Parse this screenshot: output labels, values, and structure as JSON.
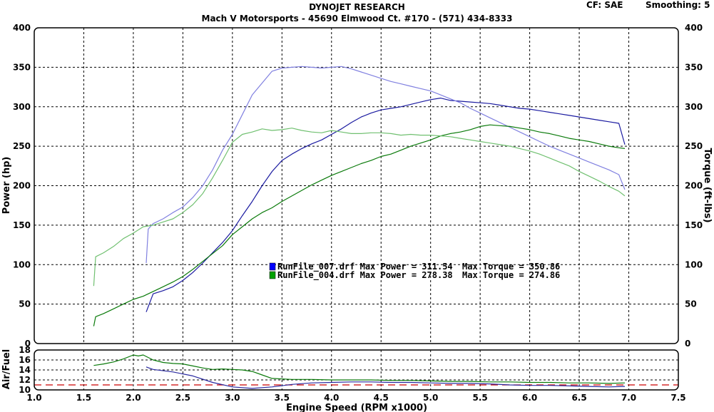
{
  "header": {
    "title": "DYNOJET RESEARCH",
    "subtitle": "Mach V Motorsports - 45690 Elmwood Ct. #170 - (571) 434-8333",
    "cf": "CF: SAE",
    "smoothing": "Smoothing: 5"
  },
  "chart_data": [
    {
      "type": "line",
      "title": "",
      "xlabel": "",
      "ylabel": "Power (hp)",
      "ylabel_right": "Torque (ft-lbs)",
      "xlim": [
        1.0,
        7.5
      ],
      "ylim": [
        0,
        400
      ],
      "x_ticks": [
        1.0,
        1.5,
        2.0,
        2.5,
        3.0,
        3.5,
        4.0,
        4.5,
        5.0,
        5.5,
        6.0,
        6.5,
        7.0,
        7.5
      ],
      "y_ticks": [
        0,
        50,
        100,
        150,
        200,
        250,
        300,
        350,
        400
      ],
      "y_ticks_right": [
        0,
        50,
        100,
        150,
        200,
        250,
        300,
        350,
        400
      ],
      "grid": true,
      "legend": [
        {
          "file": "RunFile_007.drf",
          "label": "RunFile_007.drf Max Power = 311.54",
          "torque_label": "Max Torque = 350.86",
          "color": "#0000ff"
        },
        {
          "file": "RunFile_004.drf",
          "label": "RunFile_004.drf Max Power = 278.38",
          "torque_label": "Max Torque = 274.86",
          "color": "#008000"
        }
      ],
      "series": [
        {
          "name": "RunFile_007.drf",
          "measure": "Power",
          "color": "#1a1aa0",
          "x": [
            2.13,
            2.2,
            2.3,
            2.4,
            2.5,
            2.6,
            2.7,
            2.8,
            2.9,
            3.0,
            3.1,
            3.2,
            3.3,
            3.4,
            3.5,
            3.6,
            3.7,
            3.8,
            3.9,
            4.0,
            4.1,
            4.2,
            4.3,
            4.4,
            4.5,
            4.6,
            4.7,
            4.8,
            4.9,
            5.0,
            5.1,
            5.2,
            5.3,
            5.4,
            5.5,
            5.6,
            5.7,
            5.8,
            5.9,
            6.0,
            6.1,
            6.2,
            6.3,
            6.4,
            6.5,
            6.6,
            6.7,
            6.8,
            6.9,
            6.96
          ],
          "y": [
            40,
            63,
            67,
            72,
            80,
            90,
            102,
            115,
            128,
            143,
            162,
            180,
            200,
            218,
            232,
            240,
            247,
            253,
            258,
            265,
            272,
            280,
            287,
            292,
            296,
            298,
            300,
            303,
            306,
            309,
            311,
            308,
            307,
            306,
            305,
            304,
            302,
            300,
            298,
            297,
            295,
            293,
            291,
            289,
            287,
            285,
            283,
            281,
            279,
            252
          ]
        },
        {
          "name": "RunFile_007.drf",
          "measure": "Torque",
          "color": "#8080e0",
          "x": [
            2.13,
            2.15,
            2.2,
            2.3,
            2.4,
            2.5,
            2.6,
            2.7,
            2.8,
            2.9,
            3.0,
            3.1,
            3.2,
            3.3,
            3.4,
            3.5,
            3.6,
            3.7,
            3.8,
            3.9,
            4.0,
            4.1,
            4.2,
            4.3,
            4.4,
            4.5,
            4.6,
            4.7,
            4.8,
            4.9,
            5.0,
            5.1,
            5.2,
            5.3,
            5.4,
            5.5,
            5.6,
            5.7,
            5.8,
            5.9,
            6.0,
            6.1,
            6.2,
            6.3,
            6.4,
            6.5,
            6.6,
            6.7,
            6.8,
            6.9,
            6.96
          ],
          "y": [
            102,
            145,
            152,
            158,
            166,
            173,
            185,
            200,
            220,
            245,
            265,
            290,
            315,
            330,
            345,
            349,
            350,
            351,
            350,
            349,
            350,
            351,
            348,
            344,
            340,
            336,
            332,
            329,
            326,
            323,
            320,
            315,
            310,
            305,
            298,
            292,
            286,
            280,
            274,
            268,
            262,
            256,
            250,
            245,
            240,
            235,
            230,
            225,
            220,
            214,
            195
          ]
        },
        {
          "name": "RunFile_004.drf",
          "measure": "Power",
          "color": "#0a7a0a",
          "x": [
            1.6,
            1.62,
            1.7,
            1.8,
            1.9,
            2.0,
            2.1,
            2.2,
            2.3,
            2.4,
            2.5,
            2.6,
            2.7,
            2.8,
            2.9,
            3.0,
            3.1,
            3.2,
            3.3,
            3.4,
            3.5,
            3.6,
            3.7,
            3.8,
            3.9,
            4.0,
            4.1,
            4.2,
            4.3,
            4.4,
            4.5,
            4.6,
            4.7,
            4.8,
            4.9,
            5.0,
            5.1,
            5.2,
            5.3,
            5.4,
            5.5,
            5.6,
            5.7,
            5.8,
            5.9,
            6.0,
            6.1,
            6.2,
            6.3,
            6.4,
            6.5,
            6.6,
            6.7,
            6.8,
            6.9,
            6.96
          ],
          "y": [
            22,
            34,
            38,
            44,
            50,
            56,
            60,
            66,
            72,
            78,
            85,
            94,
            104,
            114,
            124,
            138,
            148,
            158,
            166,
            172,
            180,
            187,
            194,
            201,
            207,
            213,
            218,
            223,
            228,
            232,
            237,
            240,
            245,
            250,
            254,
            258,
            263,
            266,
            268,
            271,
            275,
            277,
            276,
            275,
            273,
            271,
            268,
            266,
            263,
            260,
            258,
            256,
            253,
            250,
            248,
            247
          ]
        },
        {
          "name": "RunFile_004.drf",
          "measure": "Torque",
          "color": "#70c070",
          "x": [
            1.6,
            1.62,
            1.7,
            1.8,
            1.9,
            2.0,
            2.1,
            2.2,
            2.3,
            2.4,
            2.5,
            2.6,
            2.7,
            2.8,
            2.9,
            3.0,
            3.1,
            3.2,
            3.3,
            3.4,
            3.5,
            3.6,
            3.7,
            3.8,
            3.9,
            4.0,
            4.1,
            4.2,
            4.3,
            4.4,
            4.5,
            4.6,
            4.7,
            4.8,
            4.9,
            5.0,
            5.1,
            5.2,
            5.3,
            5.4,
            5.5,
            5.6,
            5.7,
            5.8,
            5.9,
            6.0,
            6.1,
            6.2,
            6.3,
            6.4,
            6.5,
            6.6,
            6.7,
            6.8,
            6.9,
            6.96
          ],
          "y": [
            73,
            110,
            115,
            123,
            133,
            140,
            148,
            150,
            154,
            158,
            166,
            176,
            190,
            210,
            232,
            255,
            265,
            268,
            272,
            270,
            271,
            273,
            270,
            268,
            267,
            270,
            268,
            266,
            266,
            267,
            267,
            266,
            264,
            265,
            264,
            264,
            263,
            262,
            260,
            258,
            256,
            254,
            252,
            250,
            247,
            244,
            240,
            235,
            230,
            225,
            218,
            212,
            206,
            199,
            193,
            187
          ]
        }
      ]
    },
    {
      "type": "line",
      "title": "",
      "xlabel": "Engine Speed (RPM x1000)",
      "ylabel": "Air/Fuel",
      "xlim": [
        1.0,
        7.5
      ],
      "ylim": [
        10,
        18
      ],
      "x_ticks": [
        1.0,
        1.5,
        2.0,
        2.5,
        3.0,
        3.5,
        4.0,
        4.5,
        5.0,
        5.5,
        6.0,
        6.5,
        7.0,
        7.5
      ],
      "x_tick_labels": [
        "1.0",
        "1.5",
        "2.0",
        "2.5",
        "3.0",
        "3.5",
        "4.0",
        "4.5",
        "5.0",
        "5.5",
        "6.0",
        "6.5",
        "7.0",
        "7.5"
      ],
      "y_ticks": [
        10,
        12,
        14,
        16,
        18
      ],
      "reference_line": {
        "y": 11.0,
        "color": "#cc0000",
        "style": "dashed"
      },
      "grid": true,
      "series": [
        {
          "name": "RunFile_007.drf",
          "measure": "Air/Fuel",
          "color": "#2a2aa0",
          "x": [
            2.13,
            2.2,
            2.4,
            2.6,
            2.8,
            3.0,
            3.2,
            3.4,
            3.6,
            3.8,
            4.0,
            4.2,
            4.4,
            4.6,
            4.8,
            5.0,
            5.2,
            5.4,
            5.6,
            5.8,
            6.0,
            6.2,
            6.4,
            6.6,
            6.8,
            6.96
          ],
          "y": [
            14.6,
            14.1,
            13.6,
            12.8,
            11.5,
            10.6,
            10.3,
            10.6,
            11.1,
            11.4,
            11.5,
            11.6,
            11.6,
            11.5,
            11.5,
            11.4,
            11.3,
            11.3,
            11.2,
            11.0,
            10.9,
            10.9,
            10.8,
            10.7,
            10.6,
            10.7
          ]
        },
        {
          "name": "RunFile_004.drf",
          "measure": "Air/Fuel",
          "color": "#0a7a0a",
          "x": [
            1.6,
            1.7,
            1.8,
            1.9,
            2.0,
            2.05,
            2.1,
            2.2,
            2.3,
            2.4,
            2.5,
            2.6,
            2.7,
            2.8,
            2.9,
            3.0,
            3.1,
            3.2,
            3.3,
            3.4,
            3.6,
            3.8,
            4.0,
            4.2,
            4.4,
            4.6,
            4.8,
            5.0,
            5.2,
            5.4,
            5.6,
            5.8,
            6.0,
            6.2,
            6.4,
            6.6,
            6.8,
            6.96
          ],
          "y": [
            14.9,
            15.2,
            15.6,
            16.2,
            17.0,
            16.8,
            17.0,
            16.0,
            15.5,
            15.3,
            15.2,
            14.8,
            14.4,
            14.1,
            14.2,
            14.1,
            14.0,
            13.7,
            13.0,
            12.3,
            12.1,
            12.1,
            12.0,
            12.0,
            12.0,
            11.9,
            11.9,
            11.8,
            11.7,
            11.7,
            11.6,
            11.6,
            11.5,
            11.5,
            11.4,
            11.4,
            11.3,
            11.4
          ]
        }
      ]
    }
  ]
}
